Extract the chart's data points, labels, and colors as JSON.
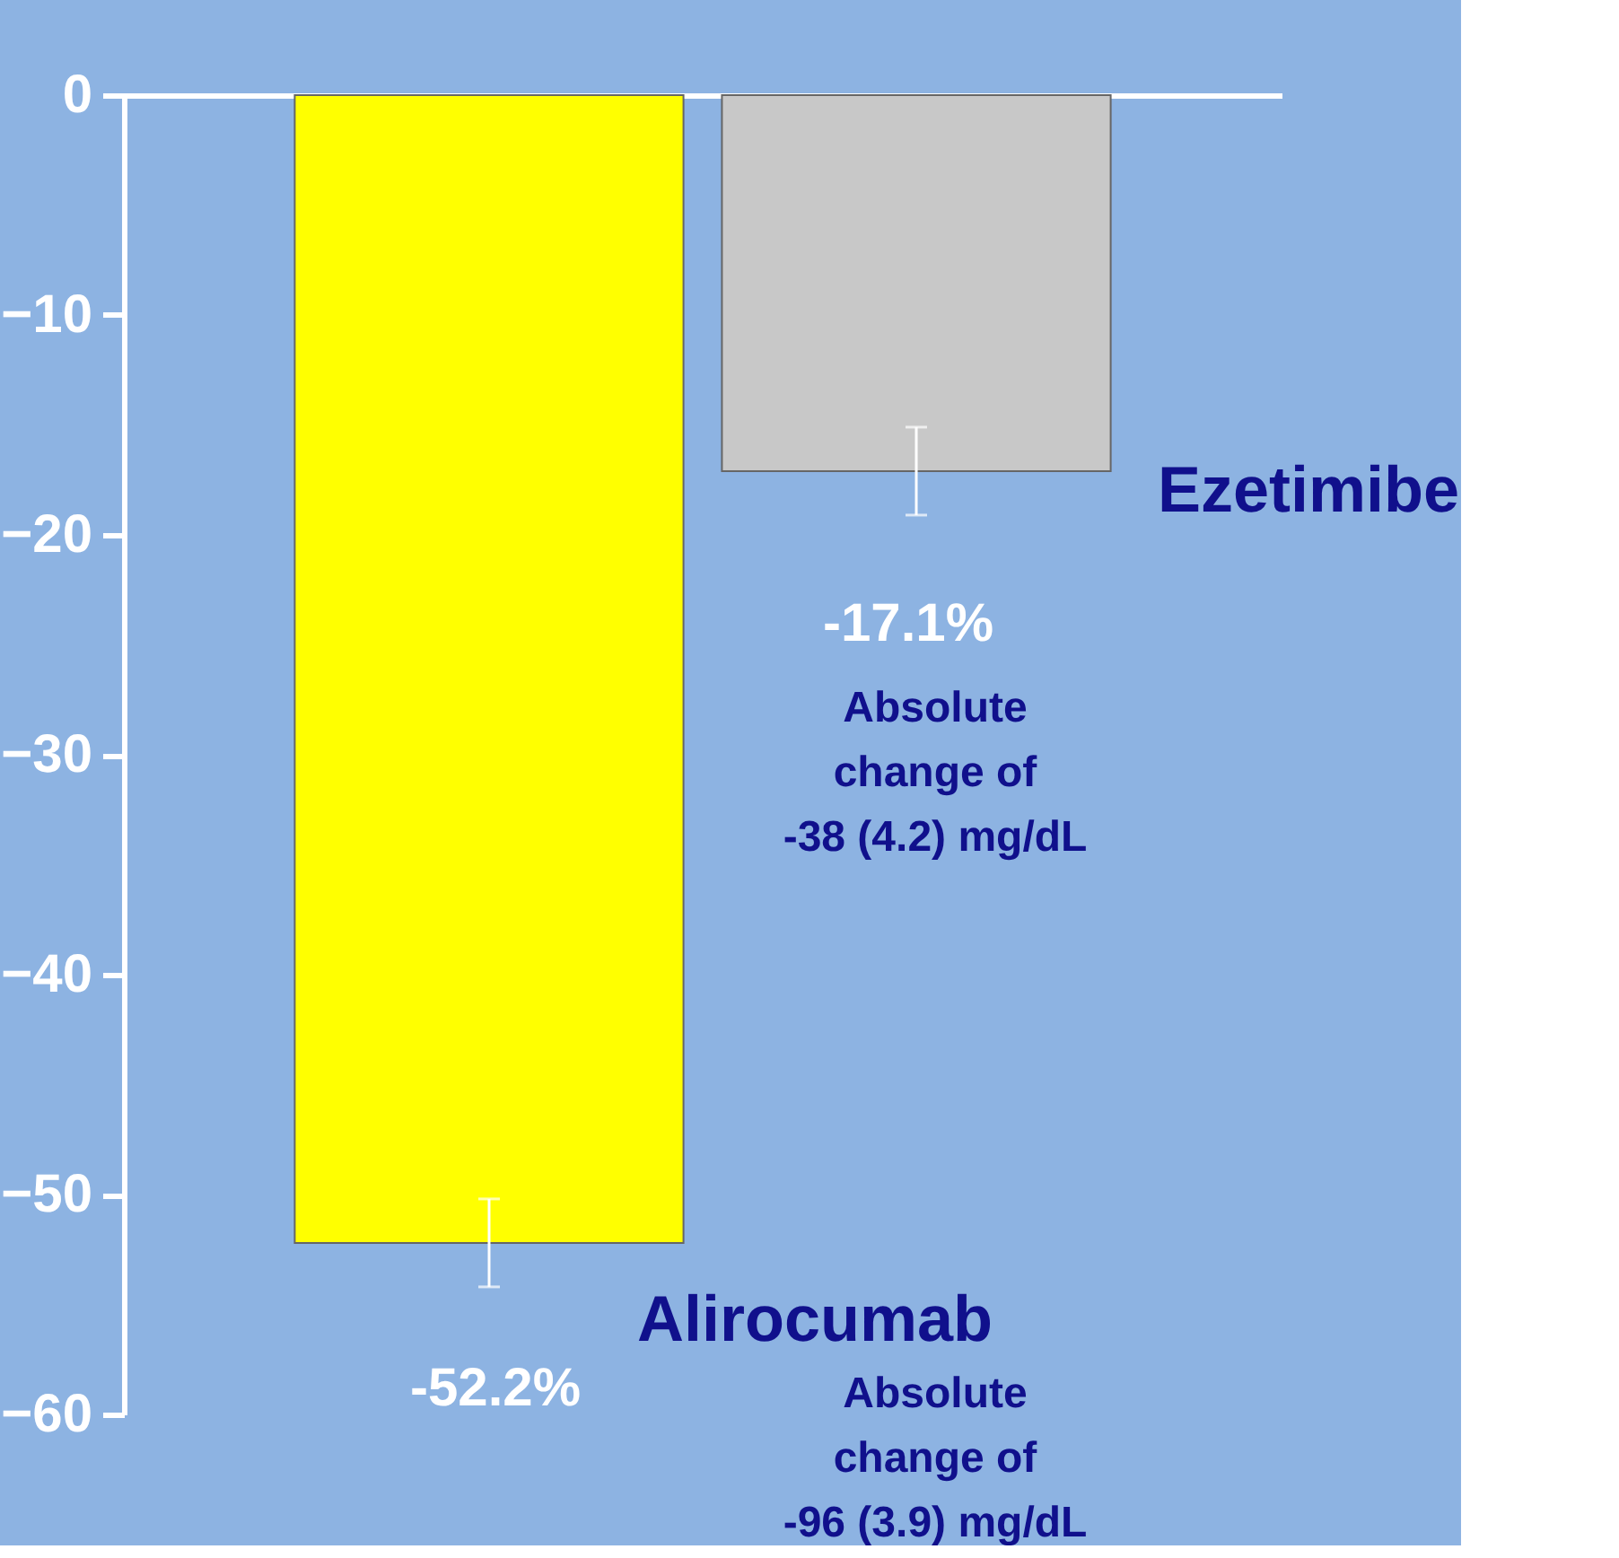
{
  "chart_data": {
    "type": "bar",
    "categories": [
      null,
      null
    ],
    "series": [
      {
        "name": "Alirocumab",
        "color": "#ffff00",
        "values": [
          -52.2,
          null
        ],
        "errors": [
          2,
          null
        ],
        "value_labels": [
          "-52.2%",
          null
        ]
      },
      {
        "name": "Ezetimibe",
        "color": "#c8c8c8",
        "values": [
          null,
          -17.1
        ],
        "errors": [
          null,
          2
        ],
        "value_labels": [
          null,
          "-17.1%"
        ]
      }
    ],
    "annotations": [
      "Absolute\nchange of\n-96 (3.9)  mg/dL",
      "Absolute\nchange of\n-38 (4.2) mg/dL"
    ],
    "ylim": [
      -60,
      0
    ],
    "yticks": [
      0,
      -10,
      -20,
      -30,
      -40,
      -50,
      -60
    ],
    "grid": false,
    "tick_labels": "y"
  }
}
